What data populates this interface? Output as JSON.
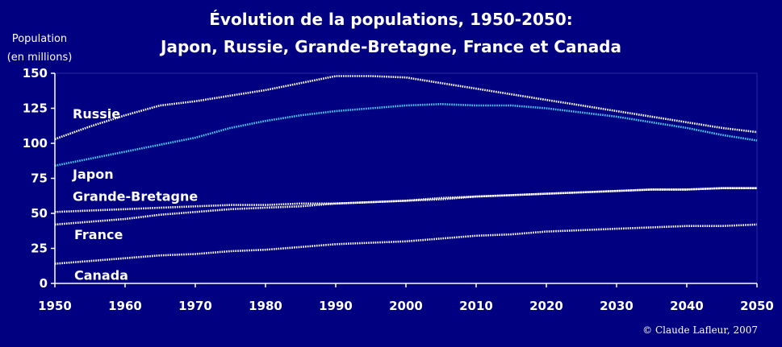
{
  "header": {
    "title_line1": "Évolution de la populations, 1950-2050:",
    "title_line2": "Japon, Russie, Grande-Bretagne, France et Canada"
  },
  "axis": {
    "ylabel_line1": "Population",
    "ylabel_line2": "(en millions)"
  },
  "footer": {
    "credit": "© Claude Lafleur, 2007"
  },
  "colors": {
    "background": "#000080",
    "axis": "#ffffff",
    "japon": "#44ccee",
    "other_series": "#ffffff"
  },
  "chart_data": {
    "type": "line",
    "title": "Évolution de la populations, 1950-2050: Japon, Russie, Grande-Bretagne, France et Canada",
    "xlabel": "",
    "ylabel": "Population (en millions)",
    "xlim": [
      1950,
      2050
    ],
    "ylim": [
      0,
      150
    ],
    "x_ticks": [
      1950,
      1960,
      1970,
      1980,
      1990,
      2000,
      2010,
      2020,
      2030,
      2040,
      2050
    ],
    "y_ticks": [
      0,
      25,
      50,
      75,
      100,
      125,
      150
    ],
    "grid": false,
    "legend": "labels next to lines",
    "x": [
      1950,
      1955,
      1960,
      1965,
      1970,
      1975,
      1980,
      1985,
      1990,
      1995,
      2000,
      2005,
      2010,
      2015,
      2020,
      2025,
      2030,
      2035,
      2040,
      2045,
      2050
    ],
    "series": [
      {
        "name": "Russie",
        "color": "#ffffff",
        "values": [
          103,
          112,
          120,
          127,
          130,
          134,
          138,
          143,
          148,
          148,
          147,
          143,
          139,
          135,
          131,
          127,
          123,
          119,
          115,
          111,
          108
        ]
      },
      {
        "name": "Japon",
        "color": "#44ccee",
        "values": [
          84,
          89,
          94,
          99,
          104,
          111,
          116,
          120,
          123,
          125,
          127,
          128,
          127,
          127,
          125,
          122,
          119,
          115,
          111,
          106,
          102
        ]
      },
      {
        "name": "Grande-Bretagne",
        "color": "#ffffff",
        "values": [
          51,
          52,
          53,
          54,
          55,
          56,
          56,
          57,
          57,
          58,
          59,
          61,
          62,
          63,
          64,
          65,
          66,
          67,
          67,
          68,
          68
        ]
      },
      {
        "name": "France",
        "color": "#ffffff",
        "values": [
          42,
          44,
          46,
          49,
          51,
          53,
          54,
          55,
          57,
          58,
          59,
          60,
          62,
          63,
          64,
          65,
          66,
          67,
          67,
          68,
          68
        ]
      },
      {
        "name": "Canada",
        "color": "#ffffff",
        "values": [
          14,
          16,
          18,
          20,
          21,
          23,
          24,
          26,
          28,
          29,
          30,
          32,
          34,
          35,
          37,
          38,
          39,
          40,
          41,
          41,
          42
        ]
      }
    ]
  }
}
